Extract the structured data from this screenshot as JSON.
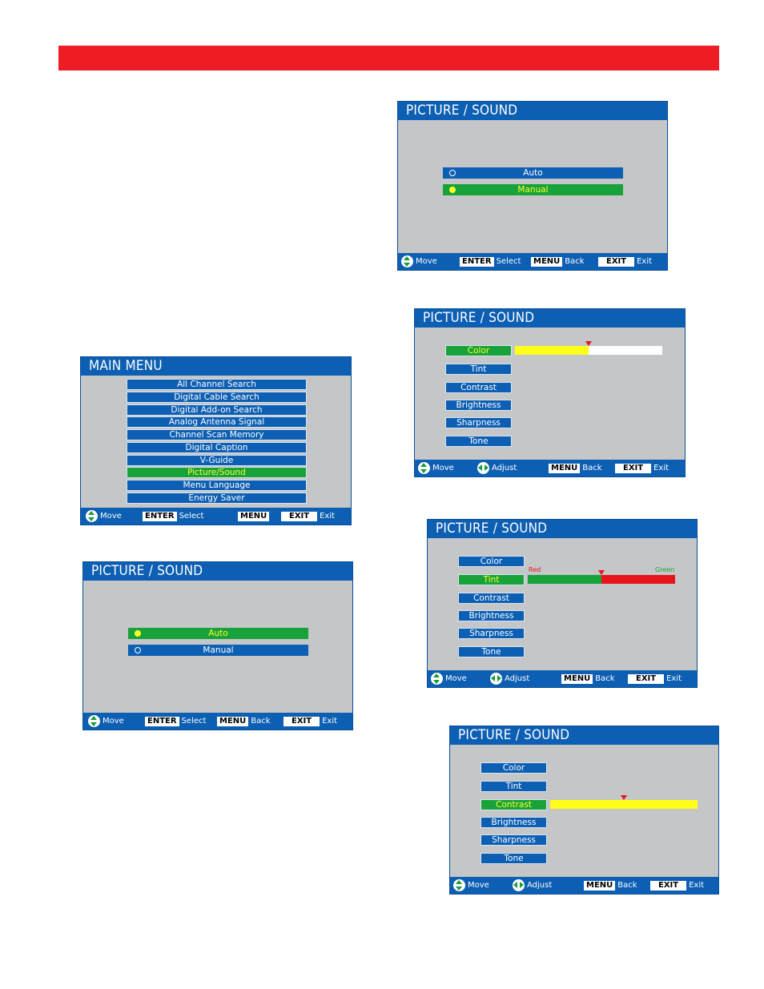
{
  "main_menu": {
    "title": "MAIN MENU",
    "items": [
      "All Channel Search",
      "Digital Cable Search",
      "Digital Add-on Search",
      "Analog Antenna Signal",
      "Channel Scan Memory",
      "Digital Caption",
      "V-Guide",
      "Picture/Sound",
      "Menu Language",
      "Energy Saver"
    ],
    "selected_index": 7,
    "footer": {
      "move": "Move",
      "enter_key": "ENTER",
      "select": "Select",
      "menu_key": "MENU",
      "exit_key": "EXIT",
      "exit": "Exit"
    }
  },
  "mode_auto": {
    "title": "PICTURE / SOUND",
    "options": [
      "Auto",
      "Manual"
    ],
    "selected_index": 0,
    "footer": {
      "move": "Move",
      "enter_key": "ENTER",
      "select": "Select",
      "menu_key": "MENU",
      "back": "Back",
      "exit_key": "EXIT",
      "exit": "Exit"
    }
  },
  "mode_manual": {
    "title": "PICTURE / SOUND",
    "options": [
      "Auto",
      "Manual"
    ],
    "selected_index": 1,
    "footer": {
      "move": "Move",
      "enter_key": "ENTER",
      "select": "Select",
      "menu_key": "MENU",
      "back": "Back",
      "exit_key": "EXIT",
      "exit": "Exit"
    }
  },
  "color_adjust": {
    "title": "PICTURE / SOUND",
    "items": [
      "Color",
      "Tint",
      "Contrast",
      "Brightness",
      "Sharpness",
      "Tone"
    ],
    "selected_index": 0,
    "level": 0.5,
    "footer": {
      "move": "Move",
      "adjust": "Adjust",
      "menu_key": "MENU",
      "back": "Back",
      "exit_key": "EXIT",
      "exit": "Exit"
    }
  },
  "tint_adjust": {
    "title": "PICTURE / SOUND",
    "items": [
      "Color",
      "Tint",
      "Contrast",
      "Brightness",
      "Sharpness",
      "Tone"
    ],
    "selected_index": 1,
    "level": 0.5,
    "left_label": "Red",
    "right_label": "Green",
    "footer": {
      "move": "Move",
      "adjust": "Adjust",
      "menu_key": "MENU",
      "back": "Back",
      "exit_key": "EXIT",
      "exit": "Exit"
    }
  },
  "contrast_adjust": {
    "title": "PICTURE / SOUND",
    "items": [
      "Color",
      "Tint",
      "Contrast",
      "Brightness",
      "Sharpness",
      "Tone"
    ],
    "selected_index": 2,
    "level": 0.5,
    "footer": {
      "move": "Move",
      "adjust": "Adjust",
      "menu_key": "MENU",
      "back": "Back",
      "exit_key": "EXIT",
      "exit": "Exit"
    }
  },
  "colors": {
    "header_red": "#ee1c25",
    "menu_blue": "#0d5fb3",
    "selected_green": "#17a33a",
    "highlight_yellow": "#ffff2a",
    "panel_gray": "#c4c6c7",
    "marker_red": "#e8141c"
  }
}
